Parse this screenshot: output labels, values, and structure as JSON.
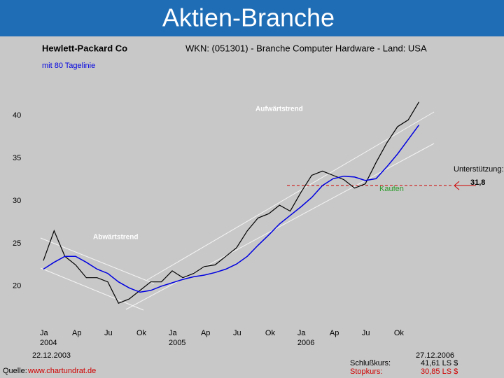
{
  "header": {
    "title": "Aktien-Branche"
  },
  "chart_data": {
    "type": "line",
    "title": "Hewlett-Packard Co",
    "subtitle": "WKN: (051301) - Branche Computer Hardware - Land: USA",
    "categories": [
      "Ja",
      null,
      null,
      "Ap",
      null,
      null,
      "Ju",
      null,
      null,
      "Ok",
      null,
      null,
      "Ja",
      null,
      null,
      "Ap",
      null,
      null,
      "Ju",
      null,
      null,
      "Ok",
      null,
      null,
      "Ja",
      null,
      null,
      "Ap",
      null,
      null,
      "Ju",
      null,
      null,
      "Ok",
      null,
      null
    ],
    "years": [
      "2004",
      null,
      null,
      null,
      null,
      null,
      null,
      null,
      null,
      null,
      null,
      null,
      "2005",
      null,
      null,
      null,
      null,
      null,
      null,
      null,
      null,
      null,
      null,
      null,
      "2006",
      null,
      null,
      null,
      null,
      null,
      null,
      null,
      null,
      null,
      null,
      null
    ],
    "series": [
      {
        "color": "#000000",
        "values": [
          23,
          26.5,
          23.5,
          22.5,
          21,
          21,
          20.5,
          18,
          18.5,
          19.5,
          20.5,
          20.5,
          21.8,
          21,
          21.5,
          22.3,
          22.5,
          23.5,
          24.5,
          26.5,
          28,
          28.5,
          29.5,
          28.8,
          31,
          33,
          33.5,
          33,
          32.5,
          31.5,
          32,
          34.5,
          36.8,
          38.7,
          39.5,
          41.6
        ]
      },
      {
        "name": "mit 80 Tagelinie",
        "color": "#0000e0",
        "values": [
          22,
          22.8,
          23.5,
          23.5,
          22.8,
          22,
          21.5,
          20.5,
          19.8,
          19.3,
          19.5,
          20,
          20.4,
          20.8,
          21.1,
          21.3,
          21.6,
          22,
          22.6,
          23.5,
          24.8,
          26,
          27.3,
          28.3,
          29.3,
          30.4,
          31.8,
          32.6,
          32.9,
          32.8,
          32.4,
          32.6,
          34,
          35.5,
          37.2,
          38.9
        ]
      }
    ],
    "ylim": [
      15.8,
      43.3
    ],
    "yticks": [
      20,
      25,
      30,
      35,
      40
    ],
    "annotations": [
      {
        "text": "Aufwärtstrend"
      },
      {
        "text": "Abwärtstrend"
      },
      {
        "text": "Kaufen"
      }
    ],
    "support": {
      "label": "Unterstützung:",
      "value": 31.8,
      "value_label": "31,8",
      "color": "#d00000"
    }
  },
  "footer": {
    "start_date": "22.12.2003",
    "end_date": "27.12.2006",
    "source_label": "Quelle:",
    "source_url": "www.chartundrat.de",
    "close_label": "Schlußkurs:",
    "close_value": "41,61 LS $",
    "stop_label": "Stopkurs:",
    "stop_value": "30,85 LS $"
  }
}
